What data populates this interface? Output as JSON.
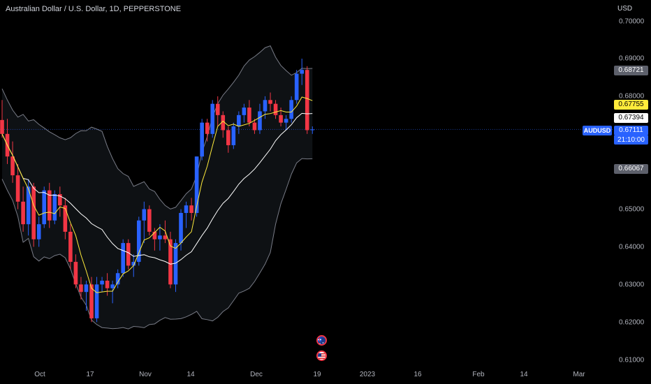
{
  "header": {
    "title": "Australian Dollar / U.S. Dollar, 1D, PEPPERSTONE"
  },
  "price_axis": {
    "currency": "USD",
    "ticks": [
      "0.70000",
      "0.69000",
      "0.68000",
      "0.65000",
      "0.64000",
      "0.63000",
      "0.62000",
      "0.61000"
    ],
    "tick_values": [
      0.7,
      0.69,
      0.68,
      0.65,
      0.64,
      0.63,
      0.62,
      0.61
    ],
    "labels": {
      "upper_band": "0.68721",
      "ma_fast": "0.67755",
      "ma_basis": "0.67394",
      "last_price": "0.67111",
      "countdown": "21:10:00",
      "lower_band": "0.66067",
      "symbol": "AUDUSD"
    }
  },
  "time_axis": {
    "labels": [
      "Oct",
      "17",
      "Nov",
      "14",
      "Dec",
      "19",
      "2023",
      "16",
      "Feb",
      "14",
      "Mar"
    ]
  },
  "events": {
    "flag_1": "australia-flag-icon",
    "flag_2": "usa-flag-icon"
  },
  "colors": {
    "up": "#2962ff",
    "down": "#f23645",
    "band": "#787b86",
    "ma_fast": "#ffeb3b",
    "basis": "#ffffff",
    "background": "#000000"
  },
  "chart_data": {
    "type": "candlestick",
    "symbol": "AUDUSD",
    "interval": "1D",
    "ylim": [
      0.61,
      0.7
    ],
    "candles": [
      [
        0.6737,
        0.679,
        0.669,
        0.67
      ],
      [
        0.67,
        0.674,
        0.662,
        0.664
      ],
      [
        0.664,
        0.668,
        0.657,
        0.659
      ],
      [
        0.659,
        0.662,
        0.65,
        0.652
      ],
      [
        0.652,
        0.656,
        0.644,
        0.646
      ],
      [
        0.646,
        0.658,
        0.643,
        0.656
      ],
      [
        0.656,
        0.657,
        0.64,
        0.642
      ],
      [
        0.642,
        0.648,
        0.64,
        0.646
      ],
      [
        0.646,
        0.656,
        0.645,
        0.655
      ],
      [
        0.655,
        0.657,
        0.645,
        0.647
      ],
      [
        0.647,
        0.655,
        0.646,
        0.654
      ],
      [
        0.654,
        0.656,
        0.648,
        0.651
      ],
      [
        0.651,
        0.653,
        0.642,
        0.644
      ],
      [
        0.644,
        0.646,
        0.634,
        0.636
      ],
      [
        0.636,
        0.638,
        0.629,
        0.63
      ],
      [
        0.63,
        0.632,
        0.626,
        0.628
      ],
      [
        0.628,
        0.631,
        0.623,
        0.63
      ],
      [
        0.63,
        0.632,
        0.62,
        0.621
      ],
      [
        0.621,
        0.632,
        0.62,
        0.63
      ],
      [
        0.63,
        0.632,
        0.628,
        0.631
      ],
      [
        0.631,
        0.633,
        0.627,
        0.629
      ],
      [
        0.629,
        0.631,
        0.625,
        0.63
      ],
      [
        0.63,
        0.634,
        0.629,
        0.633
      ],
      [
        0.633,
        0.642,
        0.632,
        0.641
      ],
      [
        0.641,
        0.642,
        0.634,
        0.635
      ],
      [
        0.635,
        0.638,
        0.632,
        0.636
      ],
      [
        0.636,
        0.648,
        0.635,
        0.647
      ],
      [
        0.647,
        0.652,
        0.641,
        0.65
      ],
      [
        0.65,
        0.651,
        0.643,
        0.644
      ],
      [
        0.644,
        0.645,
        0.639,
        0.642
      ],
      [
        0.642,
        0.646,
        0.639,
        0.643
      ],
      [
        0.643,
        0.647,
        0.641,
        0.642
      ],
      [
        0.642,
        0.644,
        0.629,
        0.63
      ],
      [
        0.63,
        0.642,
        0.628,
        0.641
      ],
      [
        0.641,
        0.65,
        0.639,
        0.649
      ],
      [
        0.649,
        0.652,
        0.645,
        0.651
      ],
      [
        0.651,
        0.653,
        0.647,
        0.649
      ],
      [
        0.649,
        0.664,
        0.648,
        0.664
      ],
      [
        0.664,
        0.674,
        0.663,
        0.673
      ],
      [
        0.673,
        0.674,
        0.668,
        0.67
      ],
      [
        0.67,
        0.679,
        0.669,
        0.678
      ],
      [
        0.678,
        0.68,
        0.672,
        0.675
      ],
      [
        0.675,
        0.676,
        0.669,
        0.671
      ],
      [
        0.671,
        0.672,
        0.665,
        0.667
      ],
      [
        0.667,
        0.673,
        0.666,
        0.672
      ],
      [
        0.672,
        0.676,
        0.67,
        0.675
      ],
      [
        0.675,
        0.678,
        0.673,
        0.677
      ],
      [
        0.677,
        0.679,
        0.672,
        0.673
      ],
      [
        0.673,
        0.674,
        0.67,
        0.671
      ],
      [
        0.671,
        0.678,
        0.67,
        0.676
      ],
      [
        0.676,
        0.68,
        0.674,
        0.679
      ],
      [
        0.679,
        0.681,
        0.676,
        0.678
      ],
      [
        0.678,
        0.679,
        0.674,
        0.675
      ],
      [
        0.675,
        0.677,
        0.672,
        0.673
      ],
      [
        0.673,
        0.675,
        0.671,
        0.674
      ],
      [
        0.674,
        0.68,
        0.673,
        0.679
      ],
      [
        0.679,
        0.687,
        0.678,
        0.686
      ],
      [
        0.686,
        0.69,
        0.683,
        0.687
      ],
      [
        0.687,
        0.688,
        0.67,
        0.671
      ],
      [
        0.671,
        0.672,
        0.67,
        0.6712
      ]
    ]
  }
}
